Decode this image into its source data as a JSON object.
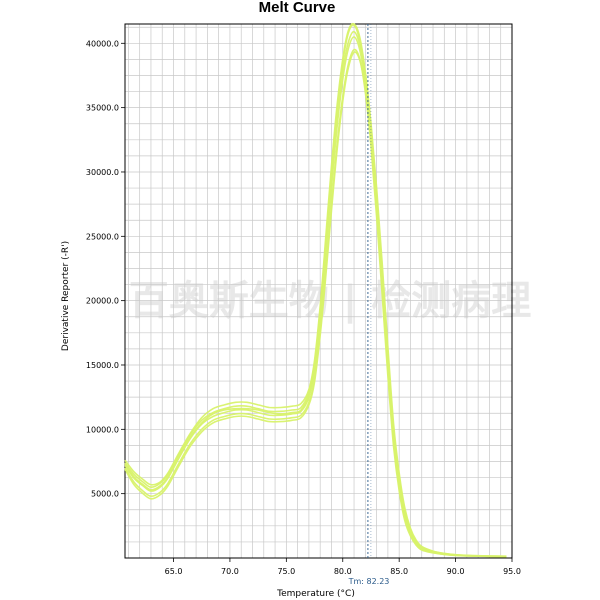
{
  "chart_data": {
    "type": "line",
    "title": "Melt Curve",
    "xlabel": "Temperature (°C)",
    "ylabel": "Derivative Reporter (-R')",
    "xlim": [
      60.7,
      95.0
    ],
    "ylim": [
      0,
      41500
    ],
    "x_ticks": [
      65.0,
      70.0,
      75.0,
      80.0,
      85.0,
      90.0,
      95.0
    ],
    "x_tick_labels": [
      "65.0",
      "70.0",
      "75.0",
      "80.0",
      "85.0",
      "90.0",
      "95.0"
    ],
    "y_ticks": [
      5000,
      10000,
      15000,
      20000,
      25000,
      30000,
      35000,
      40000
    ],
    "y_tick_labels": [
      "5000.0",
      "10000.0",
      "15000.0",
      "20000.0",
      "25000.0",
      "30000.0",
      "35000.0",
      "40000.0"
    ],
    "grid": true,
    "line_color": "#d8f26a",
    "tm_value": 82.23,
    "tm_label": "Tm: 82.23",
    "tm_line_color": "#2a5a8a",
    "watermark": "百奥斯生物 | 检测病理",
    "series": [
      {
        "x": [
          60.7,
          61.5,
          62.3,
          63.0,
          63.8,
          64.5,
          65.5,
          66.5,
          67.5,
          68.5,
          69.5,
          70.5,
          71.5,
          72.5,
          73.5,
          74.5,
          75.5,
          76.3,
          77.0,
          77.5,
          78.0,
          78.5,
          79.0,
          79.5,
          80.0,
          80.5,
          81.0,
          81.5,
          82.0,
          82.5,
          83.0,
          83.5,
          84.0,
          84.5,
          85.0,
          85.5,
          86.0,
          86.5,
          87.0,
          88.0,
          89.0,
          90.0,
          92.0,
          94.5
        ],
        "y": [
          7200,
          6200,
          5600,
          5200,
          5500,
          6200,
          7800,
          9300,
          10400,
          11000,
          11300,
          11500,
          11500,
          11300,
          11100,
          11100,
          11200,
          11400,
          12500,
          14600,
          18500,
          23500,
          28800,
          33500,
          37200,
          39600,
          40500,
          39500,
          36800,
          32500,
          27000,
          21000,
          14700,
          9200,
          5600,
          3200,
          1900,
          1100,
          700,
          450,
          300,
          220,
          150,
          120
        ]
      },
      {
        "x": [
          60.7,
          61.5,
          62.3,
          63.0,
          63.8,
          64.5,
          65.5,
          66.5,
          67.5,
          68.5,
          69.5,
          70.5,
          71.5,
          72.5,
          73.5,
          74.5,
          75.5,
          76.3,
          77.0,
          77.5,
          78.0,
          78.5,
          79.0,
          79.5,
          80.0,
          80.5,
          81.0,
          81.5,
          82.0,
          82.5,
          83.0,
          83.5,
          84.0,
          84.5,
          85.0,
          85.5,
          86.0,
          86.5,
          87.0,
          88.0,
          89.0,
          90.0,
          92.0,
          94.5
        ],
        "y": [
          7400,
          6500,
          5900,
          5500,
          5800,
          6500,
          8100,
          9600,
          10700,
          11300,
          11600,
          11800,
          11800,
          11600,
          11400,
          11400,
          11500,
          11700,
          12900,
          15200,
          19300,
          24600,
          30000,
          34800,
          38500,
          40800,
          41400,
          40200,
          37300,
          33000,
          27600,
          21600,
          15300,
          9700,
          6000,
          3500,
          2100,
          1250,
          800,
          500,
          330,
          240,
          160,
          130
        ]
      },
      {
        "x": [
          60.7,
          61.5,
          62.3,
          63.0,
          63.8,
          64.5,
          65.5,
          66.5,
          67.5,
          68.5,
          69.5,
          70.5,
          71.5,
          72.5,
          73.5,
          74.5,
          75.5,
          76.3,
          77.0,
          77.5,
          78.0,
          78.5,
          79.0,
          79.5,
          80.0,
          80.5,
          81.0,
          81.5,
          82.0,
          82.5,
          83.0,
          83.5,
          84.0,
          84.5,
          85.0,
          85.5,
          86.0,
          86.5,
          87.0,
          88.0,
          89.0,
          90.0,
          92.0,
          94.5
        ],
        "y": [
          7000,
          5900,
          5200,
          4800,
          5100,
          5800,
          7400,
          8900,
          10000,
          10700,
          11000,
          11200,
          11200,
          11000,
          10800,
          10800,
          10900,
          11100,
          12100,
          14000,
          17700,
          22400,
          27500,
          32200,
          35900,
          38400,
          39500,
          38800,
          36200,
          32000,
          26500,
          20400,
          14100,
          8700,
          5200,
          2900,
          1700,
          1000,
          620,
          400,
          270,
          200,
          140,
          110
        ]
      },
      {
        "x": [
          60.7,
          61.5,
          62.3,
          63.0,
          63.8,
          64.5,
          65.5,
          66.5,
          67.5,
          68.5,
          69.5,
          70.5,
          71.5,
          72.5,
          73.5,
          74.5,
          75.5,
          76.3,
          77.0,
          77.5,
          78.0,
          78.5,
          79.0,
          79.5,
          80.0,
          80.5,
          81.0,
          81.5,
          82.0,
          82.5,
          83.0,
          83.5,
          84.0,
          84.5,
          85.0,
          85.5,
          86.0,
          86.5,
          87.0,
          88.0,
          89.0,
          90.0,
          92.0,
          94.5
        ],
        "y": [
          7600,
          6700,
          6100,
          5700,
          5900,
          6600,
          8200,
          9700,
          10900,
          11600,
          11900,
          12100,
          12100,
          11900,
          11700,
          11700,
          11800,
          12000,
          13100,
          15400,
          19600,
          25000,
          30500,
          35200,
          38800,
          41000,
          41500,
          40500,
          37800,
          33600,
          28200,
          22200,
          15800,
          10100,
          6300,
          3700,
          2200,
          1300,
          850,
          520,
          350,
          250,
          170,
          140
        ]
      },
      {
        "x": [
          60.7,
          61.5,
          62.3,
          63.0,
          63.8,
          64.5,
          65.5,
          66.5,
          67.5,
          68.5,
          69.5,
          70.5,
          71.5,
          72.5,
          73.5,
          74.5,
          75.5,
          76.3,
          77.0,
          77.5,
          78.0,
          78.5,
          79.0,
          79.5,
          80.0,
          80.5,
          81.0,
          81.5,
          82.0,
          82.5,
          83.0,
          83.5,
          84.0,
          84.5,
          85.0,
          85.5,
          86.0,
          86.5,
          87.0,
          88.0,
          89.0,
          90.0,
          92.0,
          94.5
        ],
        "y": [
          6900,
          5700,
          5000,
          4600,
          4900,
          5600,
          7200,
          8700,
          9800,
          10500,
          10800,
          11000,
          11000,
          10800,
          10600,
          10600,
          10700,
          10900,
          11900,
          13700,
          17300,
          21900,
          27000,
          31700,
          35500,
          38100,
          39300,
          38700,
          36500,
          32600,
          27300,
          21300,
          14900,
          9400,
          5700,
          3200,
          1850,
          1050,
          650,
          420,
          280,
          210,
          145,
          115
        ]
      },
      {
        "x": [
          60.7,
          61.5,
          62.3,
          63.0,
          63.8,
          64.5,
          65.5,
          66.5,
          67.5,
          68.5,
          69.5,
          70.5,
          71.5,
          72.5,
          73.5,
          74.5,
          75.5,
          76.3,
          77.0,
          77.5,
          78.0,
          78.5,
          79.0,
          79.5,
          80.0,
          80.5,
          81.0,
          81.5,
          82.0,
          82.5,
          83.0,
          83.5,
          84.0,
          84.5,
          85.0,
          85.5,
          86.0,
          86.5,
          87.0,
          88.0,
          89.0,
          90.0,
          92.0,
          94.5
        ],
        "y": [
          7300,
          6300,
          5700,
          5300,
          5600,
          6300,
          7900,
          9400,
          10500,
          11200,
          11500,
          11600,
          11600,
          11500,
          11300,
          11200,
          11300,
          11500,
          12700,
          14900,
          18900,
          24100,
          29400,
          34100,
          37800,
          40100,
          40900,
          39900,
          37500,
          33800,
          28800,
          22900,
          16400,
          10500,
          6600,
          3900,
          2300,
          1400,
          900,
          540,
          360,
          260,
          175,
          135
        ]
      }
    ]
  }
}
